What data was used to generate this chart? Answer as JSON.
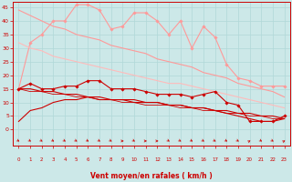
{
  "background_color": "#cce8e8",
  "grid_color": "#b0d8d8",
  "xlabel": "Vent moyen/en rafales ( km/h )",
  "xlabel_color": "#cc0000",
  "tick_color": "#cc0000",
  "x": [
    0,
    1,
    2,
    3,
    4,
    5,
    6,
    7,
    8,
    9,
    10,
    11,
    12,
    13,
    14,
    15,
    16,
    17,
    18,
    19,
    20,
    21,
    22,
    23
  ],
  "ylim": [
    -6,
    47
  ],
  "xlim": [
    -0.5,
    23.5
  ],
  "yticks": [
    0,
    5,
    10,
    15,
    20,
    25,
    30,
    35,
    40,
    45
  ],
  "xticks": [
    0,
    1,
    2,
    3,
    4,
    5,
    6,
    7,
    8,
    9,
    10,
    11,
    12,
    13,
    14,
    15,
    16,
    17,
    18,
    19,
    20,
    21,
    22,
    23
  ],
  "series": [
    {
      "color": "#ff9999",
      "lw": 0.8,
      "marker": "D",
      "ms": 1.8,
      "y": [
        15,
        32,
        35,
        40,
        40,
        46,
        46,
        44,
        37,
        38,
        43,
        43,
        40,
        35,
        40,
        30,
        38,
        34,
        24,
        19,
        18,
        16,
        16,
        16
      ]
    },
    {
      "color": "#ff9999",
      "lw": 0.8,
      "marker": null,
      "ms": 0,
      "y": [
        44,
        42,
        40,
        38,
        37,
        35,
        34,
        33,
        31,
        30,
        29,
        28,
        26,
        25,
        24,
        23,
        21,
        20,
        19,
        17,
        16,
        15,
        14,
        12
      ]
    },
    {
      "color": "#ffbbbb",
      "lw": 0.8,
      "marker": null,
      "ms": 0,
      "y": [
        32,
        30,
        29,
        27,
        26,
        25,
        24,
        23,
        22,
        21,
        20,
        19,
        18,
        17,
        17,
        16,
        15,
        14,
        13,
        12,
        11,
        10,
        9,
        8
      ]
    },
    {
      "color": "#cc0000",
      "lw": 0.8,
      "marker": null,
      "ms": 0,
      "y": [
        3,
        7,
        8,
        10,
        11,
        11,
        12,
        11,
        11,
        11,
        10,
        10,
        10,
        9,
        9,
        8,
        8,
        7,
        6,
        5,
        4,
        3,
        3,
        4
      ]
    },
    {
      "color": "#cc0000",
      "lw": 0.8,
      "marker": "D",
      "ms": 1.8,
      "y": [
        15,
        17,
        15,
        15,
        16,
        16,
        18,
        18,
        15,
        15,
        15,
        14,
        13,
        13,
        13,
        12,
        13,
        14,
        10,
        9,
        3,
        3,
        3,
        5
      ]
    },
    {
      "color": "#cc0000",
      "lw": 0.8,
      "marker": null,
      "ms": 0,
      "y": [
        15,
        15,
        14,
        14,
        13,
        13,
        12,
        12,
        11,
        11,
        11,
        10,
        10,
        9,
        9,
        8,
        8,
        7,
        7,
        6,
        6,
        5,
        5,
        4
      ]
    },
    {
      "color": "#cc0000",
      "lw": 0.6,
      "marker": null,
      "ms": 0,
      "y": [
        15,
        14,
        14,
        13,
        13,
        12,
        12,
        11,
        11,
        10,
        10,
        9,
        9,
        9,
        8,
        8,
        7,
        7,
        6,
        6,
        5,
        5,
        4,
        4
      ]
    }
  ],
  "arrow_angles": [
    135,
    135,
    135,
    135,
    135,
    135,
    135,
    135,
    135,
    90,
    135,
    90,
    90,
    135,
    135,
    135,
    135,
    135,
    135,
    135,
    45,
    135,
    135,
    45
  ]
}
